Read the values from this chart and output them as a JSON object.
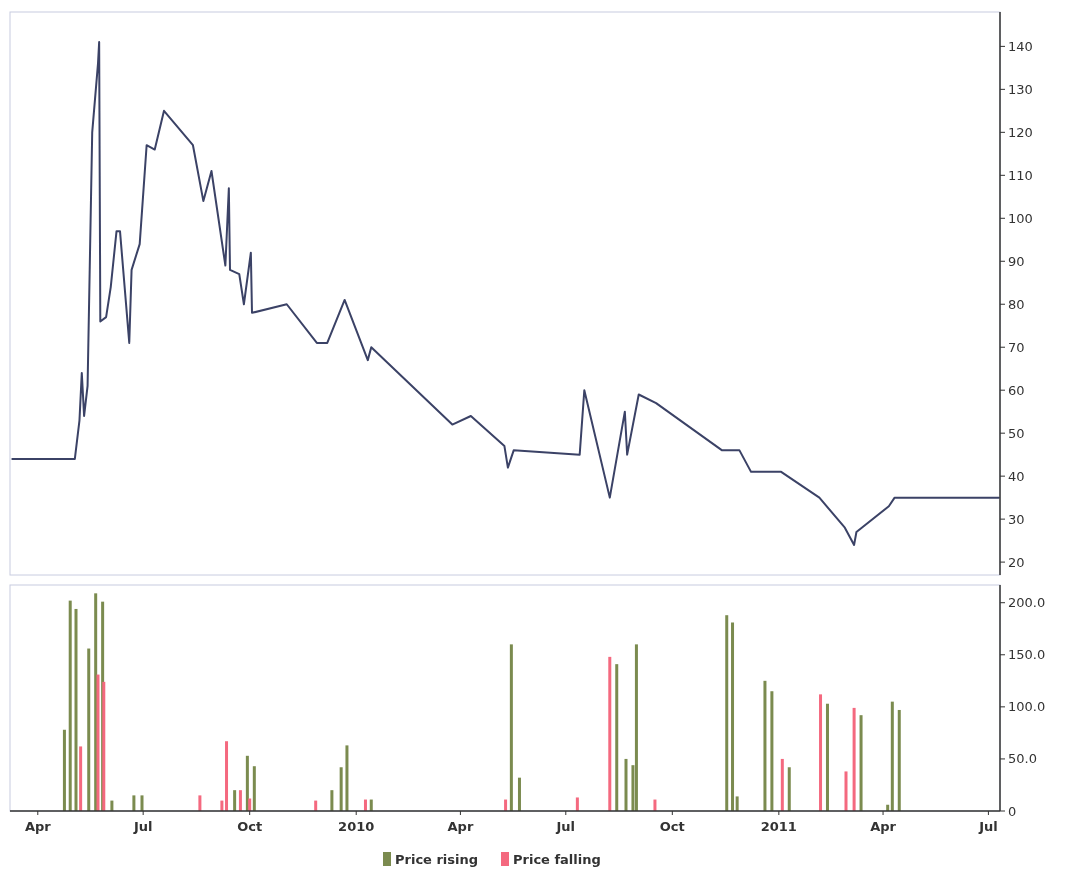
{
  "chart_data": [
    {
      "type": "line",
      "xlim": [
        "2009-03-08",
        "2011-07-11"
      ],
      "ylim": [
        17,
        148
      ],
      "yticks": [
        20,
        30,
        40,
        50,
        60,
        70,
        80,
        90,
        100,
        110,
        120,
        130,
        140
      ],
      "tick_labels": "y",
      "grid": false,
      "legend": false,
      "series": [
        {
          "color": "#3b4266",
          "x": [
            "2009-03-10",
            "2009-05-03",
            "2009-05-07",
            "2009-05-09",
            "2009-05-11",
            "2009-05-14",
            "2009-05-18",
            "2009-05-23",
            "2009-05-24",
            "2009-05-25",
            "2009-05-30",
            "2009-06-03",
            "2009-06-08",
            "2009-06-11",
            "2009-06-19",
            "2009-06-21",
            "2009-06-28",
            "2009-07-04",
            "2009-07-11",
            "2009-07-19",
            "2009-08-13",
            "2009-08-22",
            "2009-08-29",
            "2009-09-10",
            "2009-09-13",
            "2009-09-14",
            "2009-09-22",
            "2009-09-26",
            "2009-10-02",
            "2009-10-03",
            "2009-11-02",
            "2009-11-28",
            "2009-12-07",
            "2009-12-22",
            "2010-01-11",
            "2010-01-14",
            "2010-03-25",
            "2010-04-10",
            "2010-05-09",
            "2010-05-12",
            "2010-05-17",
            "2010-07-13",
            "2010-07-17",
            "2010-08-08",
            "2010-08-21",
            "2010-08-23",
            "2010-09-02",
            "2010-09-17",
            "2010-11-13",
            "2010-11-28",
            "2010-12-08",
            "2011-01-03",
            "2011-02-05",
            "2011-02-27",
            "2011-03-07",
            "2011-03-09",
            "2011-04-06",
            "2011-04-11",
            "2011-07-10"
          ],
          "values": [
            44,
            44,
            53,
            64,
            54,
            61,
            120,
            136,
            141,
            76,
            77,
            84,
            97,
            97,
            71,
            88,
            94,
            117,
            116,
            125,
            117,
            104,
            111,
            89,
            107,
            88,
            87,
            80,
            92,
            78,
            80,
            71,
            71,
            81,
            67,
            70,
            52,
            54,
            47,
            42,
            46,
            45,
            60,
            35,
            55,
            45,
            59,
            57,
            46,
            46,
            41,
            41,
            35,
            28,
            24,
            27,
            33,
            35,
            35
          ]
        }
      ]
    },
    {
      "type": "bar",
      "xlim": [
        "2009-03-08",
        "2011-07-11"
      ],
      "ylim": [
        0,
        217
      ],
      "yticks": [
        0,
        {
          "value": 50,
          "label": "50.0"
        },
        {
          "value": 100,
          "label": "100.0"
        },
        {
          "value": 150,
          "label": "150.0"
        },
        {
          "value": 200,
          "label": "200.0"
        }
      ],
      "xticks": [
        {
          "value": "2009-04-01",
          "label": "Apr"
        },
        {
          "value": "2009-07-01",
          "label": "Jul"
        },
        {
          "value": "2009-10-01",
          "label": "Oct"
        },
        {
          "value": "2010-01-01",
          "label": "2010"
        },
        {
          "value": "2010-04-01",
          "label": "Apr"
        },
        {
          "value": "2010-07-01",
          "label": "Jul"
        },
        {
          "value": "2010-10-01",
          "label": "Oct"
        },
        {
          "value": "2011-01-01",
          "label": "2011"
        },
        {
          "value": "2011-04-01",
          "label": "Apr"
        },
        {
          "value": "2011-07-01",
          "label": "Jul"
        }
      ],
      "grid": false,
      "legend": "bottom",
      "series": [
        {
          "name": "Price rising",
          "color": "#7b8b4f",
          "x": [
            "2009-04-24",
            "2009-04-29",
            "2009-05-04",
            "2009-05-15",
            "2009-05-21",
            "2009-05-27",
            "2009-06-04",
            "2009-06-23",
            "2009-06-30",
            "2009-09-18",
            "2009-09-29",
            "2009-10-05",
            "2009-12-11",
            "2009-12-19",
            "2009-12-24",
            "2010-01-14",
            "2010-05-15",
            "2010-05-22",
            "2010-08-14",
            "2010-08-22",
            "2010-08-28",
            "2010-08-31",
            "2010-11-17",
            "2010-11-22",
            "2010-11-26",
            "2010-12-20",
            "2010-12-26",
            "2011-01-10",
            "2011-02-12",
            "2011-03-13",
            "2011-04-05",
            "2011-04-09",
            "2011-04-15"
          ],
          "values": [
            78,
            202,
            194,
            156,
            209,
            201,
            10,
            15,
            15,
            20,
            53,
            43,
            20,
            42,
            63,
            11,
            160,
            32,
            141,
            50,
            44,
            160,
            188,
            181,
            14,
            125,
            115,
            42,
            103,
            92,
            6,
            105,
            97
          ]
        },
        {
          "name": "Price falling",
          "color": "#f4697f",
          "x": [
            "2009-05-08",
            "2009-05-23",
            "2009-05-28",
            "2009-08-19",
            "2009-09-07",
            "2009-09-11",
            "2009-09-23",
            "2009-10-01",
            "2009-11-27",
            "2010-01-09",
            "2010-05-10",
            "2010-07-11",
            "2010-08-08",
            "2010-09-16",
            "2011-01-04",
            "2011-02-06",
            "2011-02-28",
            "2011-03-07"
          ],
          "values": [
            62,
            131,
            124,
            15,
            10,
            67,
            20,
            12,
            10,
            11,
            11,
            13,
            148,
            11,
            50,
            112,
            38,
            99
          ]
        }
      ]
    }
  ]
}
